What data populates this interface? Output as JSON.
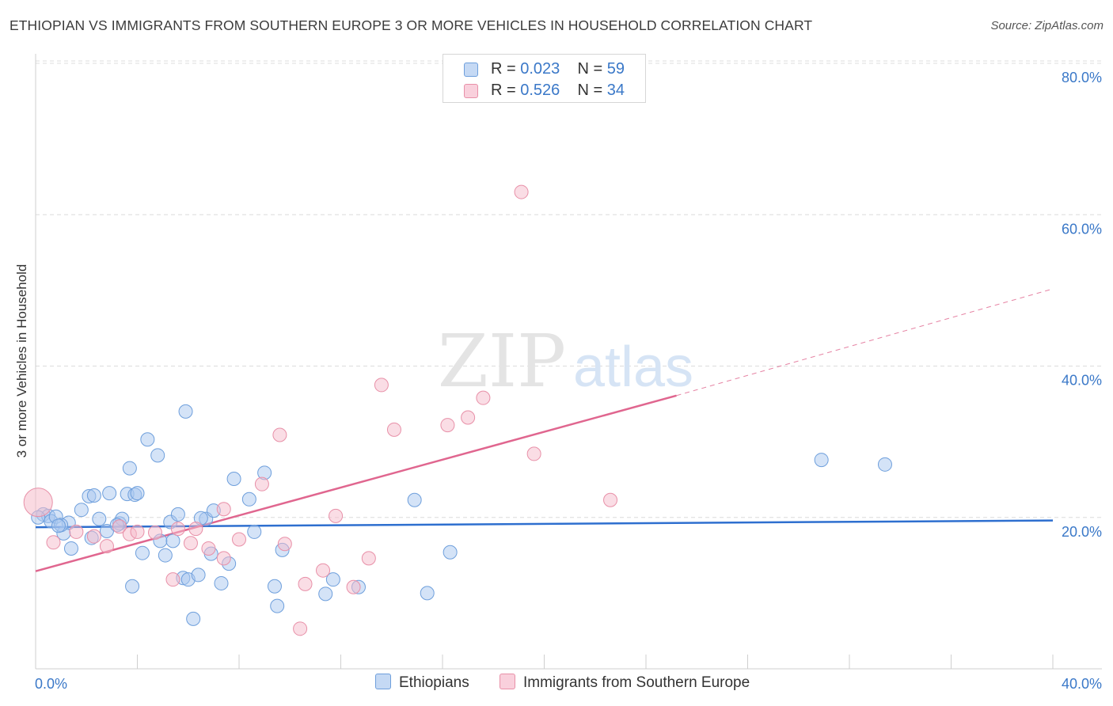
{
  "title": "ETHIOPIAN VS IMMIGRANTS FROM SOUTHERN EUROPE 3 OR MORE VEHICLES IN HOUSEHOLD CORRELATION CHART",
  "source": "Source: ZipAtlas.com",
  "watermark": {
    "zip": "ZIP",
    "atlas": "atlas"
  },
  "legend": {
    "rows": [
      {
        "r_label": "R = ",
        "r_value": "0.023",
        "n_label": "N = ",
        "n_value": "59"
      },
      {
        "r_label": "R = ",
        "r_value": "0.526",
        "n_label": "N = ",
        "n_value": "34"
      }
    ]
  },
  "bottom_legend": [
    {
      "label": "Ethiopians"
    },
    {
      "label": "Immigrants from Southern Europe"
    }
  ],
  "colors": {
    "blue_fill": "#aac8f0",
    "blue_stroke": "#6e9fdc",
    "blue_line": "#2e6fcf",
    "pink_fill": "#f5bccb",
    "pink_stroke": "#e890a8",
    "pink_line": "#e0668f",
    "tick_label": "#3a78c8",
    "grid": "#dcdcdc"
  },
  "chart_data": {
    "type": "scatter",
    "title": "ETHIOPIAN VS IMMIGRANTS FROM SOUTHERN EUROPE 3 OR MORE VEHICLES IN HOUSEHOLD CORRELATION CHART",
    "xlabel": "",
    "ylabel": "3 or more Vehicles in Household",
    "xlim": [
      0,
      40
    ],
    "ylim": [
      0,
      80
    ],
    "x_tick_labels": [
      "0.0%",
      "40.0%"
    ],
    "y_ticks": [
      20,
      40,
      60,
      80
    ],
    "y_tick_labels": [
      "20.0%",
      "40.0%",
      "60.0%",
      "80.0%"
    ],
    "series": [
      {
        "name": "Ethiopians",
        "R": 0.023,
        "N": 59,
        "trend": {
          "x": [
            0,
            40
          ],
          "y": [
            18.7,
            19.6
          ]
        },
        "points": [
          [
            0.3,
            20.4
          ],
          [
            0.5,
            20.2
          ],
          [
            0.6,
            19.5
          ],
          [
            0.8,
            20.1
          ],
          [
            1.1,
            17.9
          ],
          [
            1.3,
            19.3
          ],
          [
            1.4,
            15.9
          ],
          [
            1.8,
            21.0
          ],
          [
            2.1,
            22.8
          ],
          [
            2.3,
            22.9
          ],
          [
            2.2,
            17.3
          ],
          [
            2.5,
            19.8
          ],
          [
            2.8,
            18.2
          ],
          [
            2.9,
            23.2
          ],
          [
            3.3,
            19.2
          ],
          [
            3.4,
            19.8
          ],
          [
            3.6,
            23.1
          ],
          [
            3.7,
            26.5
          ],
          [
            3.9,
            23.0
          ],
          [
            3.8,
            10.9
          ],
          [
            4.0,
            23.2
          ],
          [
            4.2,
            15.3
          ],
          [
            4.4,
            30.3
          ],
          [
            4.8,
            28.2
          ],
          [
            4.9,
            16.9
          ],
          [
            5.1,
            15.0
          ],
          [
            5.3,
            19.4
          ],
          [
            5.4,
            16.9
          ],
          [
            5.6,
            20.4
          ],
          [
            5.8,
            12.0
          ],
          [
            5.9,
            34.0
          ],
          [
            6.0,
            11.8
          ],
          [
            6.2,
            6.6
          ],
          [
            6.4,
            12.4
          ],
          [
            6.7,
            19.8
          ],
          [
            6.9,
            15.2
          ],
          [
            7.0,
            20.9
          ],
          [
            7.3,
            11.3
          ],
          [
            7.6,
            13.9
          ],
          [
            7.8,
            25.1
          ],
          [
            8.4,
            22.4
          ],
          [
            8.6,
            18.1
          ],
          [
            9.0,
            25.9
          ],
          [
            9.4,
            10.9
          ],
          [
            9.5,
            8.3
          ],
          [
            9.7,
            15.7
          ],
          [
            11.4,
            9.9
          ],
          [
            11.7,
            11.8
          ],
          [
            12.7,
            10.8
          ],
          [
            14.9,
            22.3
          ],
          [
            15.4,
            10.0
          ],
          [
            16.3,
            15.4
          ],
          [
            30.9,
            27.6
          ],
          [
            33.4,
            27.0
          ],
          [
            0.1,
            20.0
          ],
          [
            1.0,
            19.0
          ],
          [
            3.2,
            19.0
          ],
          [
            0.9,
            18.9
          ],
          [
            6.5,
            19.9
          ]
        ]
      },
      {
        "name": "Immigrants from Southern Europe",
        "R": 0.526,
        "N": 34,
        "trend": {
          "x": [
            0,
            25.2
          ],
          "y": [
            12.9,
            36.1
          ]
        },
        "trend_extension": {
          "x": [
            25.2,
            40
          ],
          "y": [
            36.1,
            50.2
          ]
        },
        "points": [
          [
            0.1,
            22.0
          ],
          [
            0.7,
            16.7
          ],
          [
            1.6,
            18.1
          ],
          [
            2.3,
            17.5
          ],
          [
            2.8,
            16.2
          ],
          [
            3.3,
            18.8
          ],
          [
            3.7,
            17.8
          ],
          [
            4.0,
            18.1
          ],
          [
            4.7,
            18.0
          ],
          [
            5.4,
            11.8
          ],
          [
            5.6,
            18.5
          ],
          [
            6.1,
            16.6
          ],
          [
            6.3,
            18.5
          ],
          [
            6.8,
            15.9
          ],
          [
            7.4,
            14.6
          ],
          [
            7.4,
            21.1
          ],
          [
            8.0,
            17.1
          ],
          [
            8.9,
            24.4
          ],
          [
            9.6,
            30.9
          ],
          [
            9.8,
            16.5
          ],
          [
            10.4,
            5.3
          ],
          [
            10.6,
            11.2
          ],
          [
            11.3,
            13.0
          ],
          [
            11.8,
            20.2
          ],
          [
            12.5,
            10.8
          ],
          [
            13.1,
            14.6
          ],
          [
            13.6,
            37.5
          ],
          [
            14.1,
            31.6
          ],
          [
            16.2,
            32.2
          ],
          [
            17.0,
            33.2
          ],
          [
            17.6,
            35.8
          ],
          [
            19.1,
            63.0
          ],
          [
            19.6,
            28.4
          ],
          [
            22.6,
            22.3
          ]
        ]
      }
    ]
  }
}
